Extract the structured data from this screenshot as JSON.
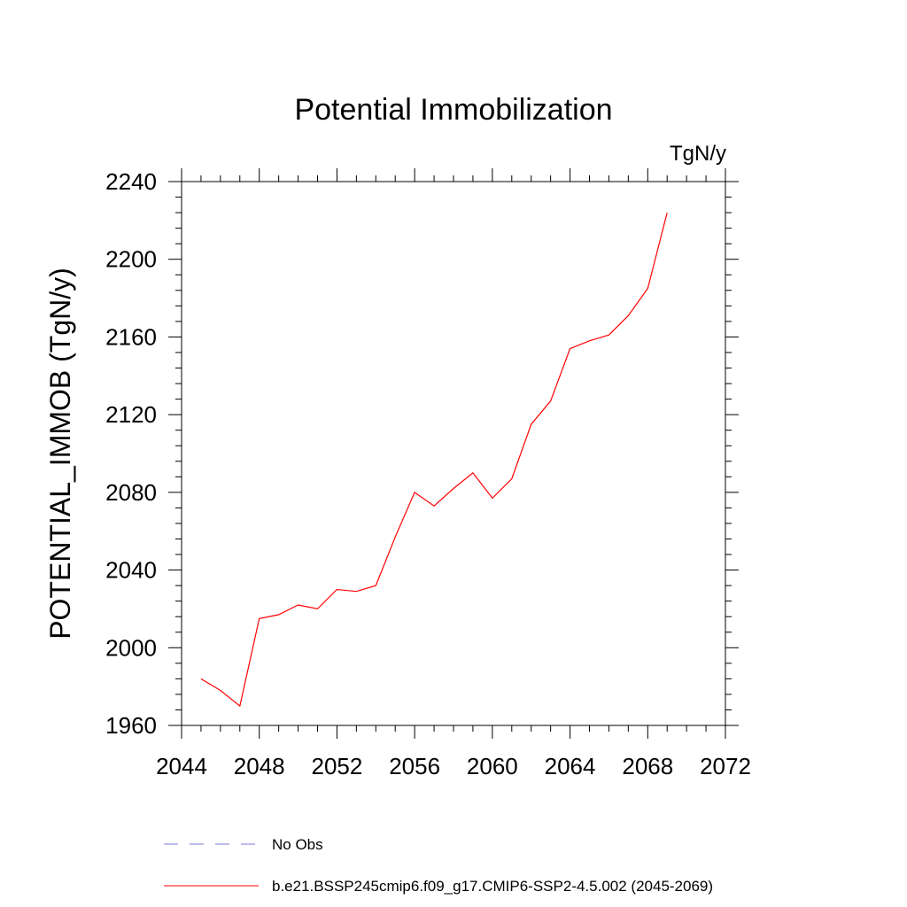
{
  "chart_data": {
    "type": "line",
    "title": "Potential Immobilization",
    "units": "TgN/y",
    "ylabel": "POTENTIAL_IMMOB  (TgN/y)",
    "xlabel": "",
    "xlim": [
      2044,
      2072
    ],
    "ylim": [
      1960,
      2240
    ],
    "x_ticks": [
      2044,
      2048,
      2052,
      2056,
      2060,
      2064,
      2068,
      2072
    ],
    "y_ticks": [
      1960,
      2000,
      2040,
      2080,
      2120,
      2160,
      2200,
      2240
    ],
    "grid": false,
    "legend_position": "bottom",
    "legend": [
      {
        "label": "No Obs",
        "color": "#7b7bd8",
        "dash": "dashed"
      },
      {
        "label": "b.e21.BSSP245cmip6.f09_g17.CMIP6-SSP2-4.5.002 (2045-2069)",
        "color": "#ff0000",
        "dash": "solid"
      }
    ],
    "series": [
      {
        "name": "b.e21.BSSP245cmip6.f09_g17.CMIP6-SSP2-4.5.002 (2045-2069)",
        "color": "#ff0000",
        "x": [
          2045,
          2046,
          2047,
          2048,
          2049,
          2050,
          2051,
          2052,
          2053,
          2054,
          2055,
          2056,
          2057,
          2058,
          2059,
          2060,
          2061,
          2062,
          2063,
          2064,
          2065,
          2066,
          2067,
          2068,
          2069
        ],
        "y": [
          1984,
          1978,
          1970,
          2015,
          2017,
          2022,
          2020,
          2030,
          2029,
          2032,
          2057,
          2080,
          2073,
          2082,
          2090,
          2077,
          2087,
          2115,
          2127,
          2154,
          2158,
          2161,
          2171,
          2185,
          2224
        ]
      }
    ]
  }
}
